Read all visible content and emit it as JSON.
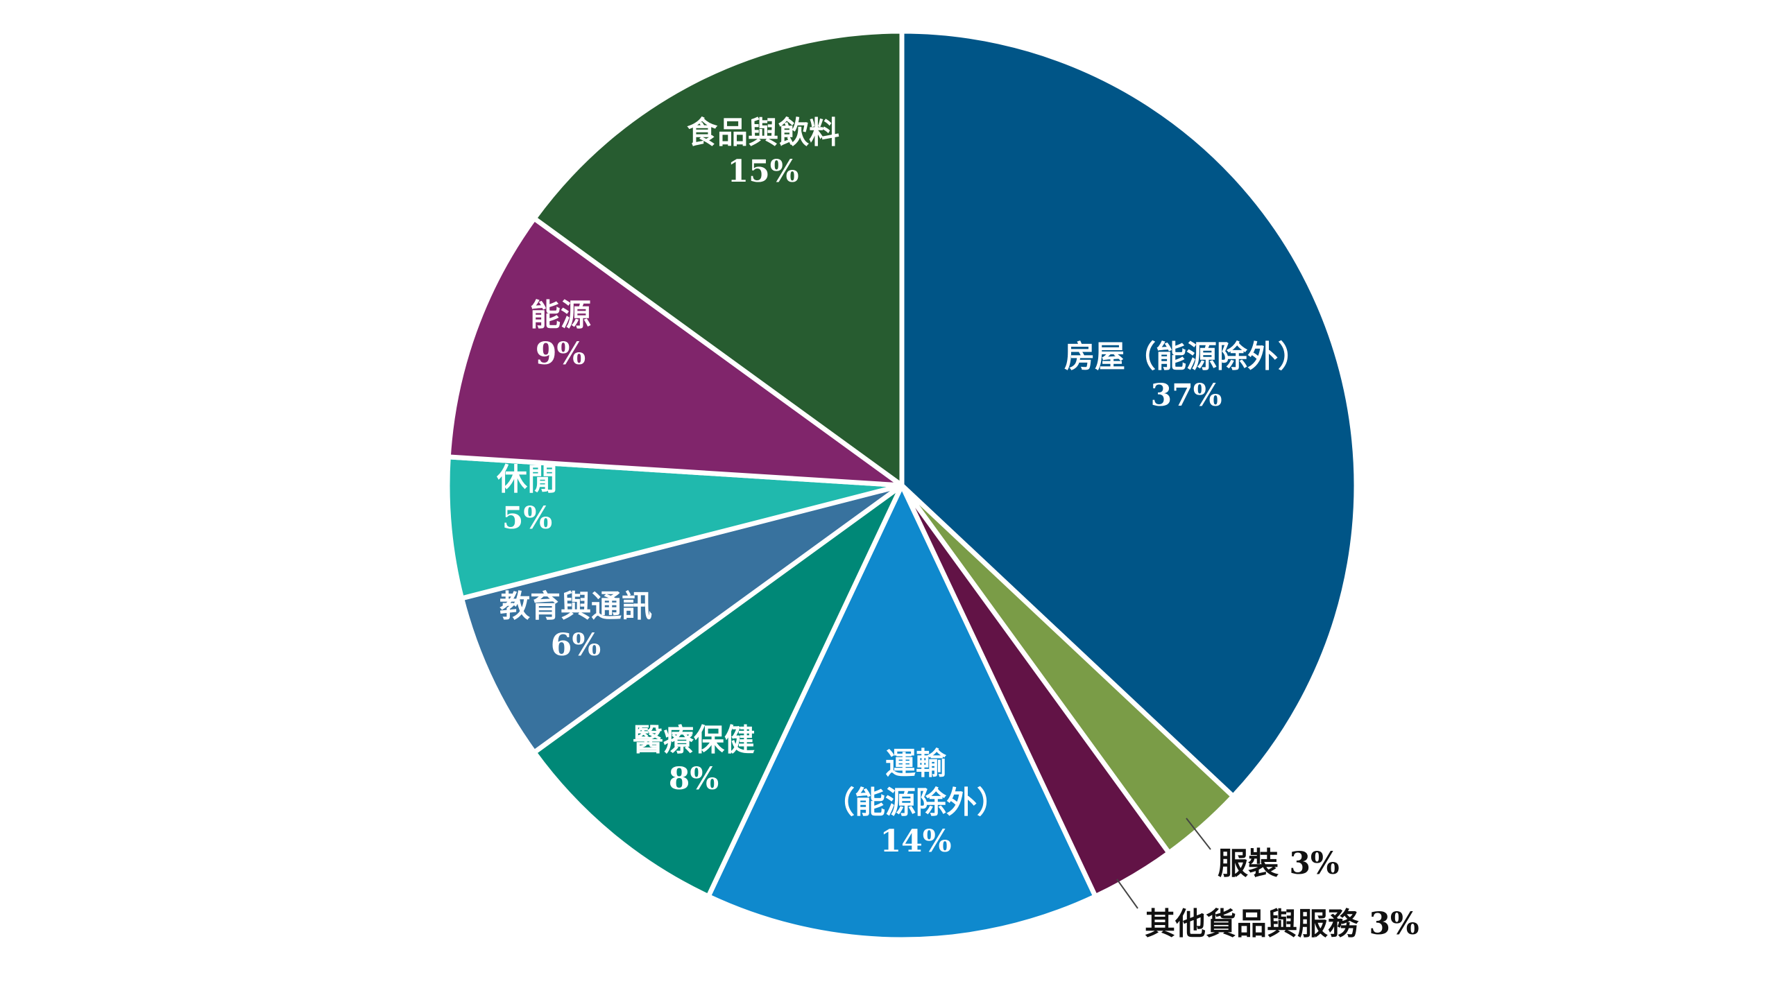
{
  "chart_data": {
    "type": "pie",
    "title": "",
    "slices": [
      {
        "label_lines": [
          "房屋（能源除外）",
          "37%"
        ],
        "value": 37,
        "color": "#005587",
        "label_style": "inside"
      },
      {
        "label_lines": [
          "服裝 3%"
        ],
        "value": 3,
        "color": "#7a9c47",
        "label_style": "outside"
      },
      {
        "label_lines": [
          "其他貨品與服務 3%"
        ],
        "value": 3,
        "color": "#621346",
        "label_style": "outside"
      },
      {
        "label_lines": [
          "運輸",
          "（能源除外）",
          "14%"
        ],
        "value": 14,
        "color": "#0f89cd",
        "label_style": "inside"
      },
      {
        "label_lines": [
          "醫療保健",
          "8%"
        ],
        "value": 8,
        "color": "#008877",
        "label_style": "inside"
      },
      {
        "label_lines": [
          "教育與通訊",
          "6%"
        ],
        "value": 6,
        "color": "#38729e",
        "label_style": "inside"
      },
      {
        "label_lines": [
          "休閒",
          "5%"
        ],
        "value": 5,
        "color": "#20b9ad",
        "label_style": "inside"
      },
      {
        "label_lines": [
          "能源",
          "9%"
        ],
        "value": 9,
        "color": "#80256b",
        "label_style": "inside"
      },
      {
        "label_lines": [
          "食品與飲料",
          "15%"
        ],
        "value": 15,
        "color": "#275c30",
        "label_style": "inside"
      }
    ]
  }
}
